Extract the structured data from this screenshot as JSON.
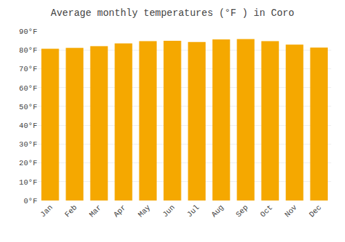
{
  "chart_data": {
    "type": "bar",
    "title": "Average monthly temperatures (°F ) in Coro",
    "categories": [
      "Jan",
      "Feb",
      "Mar",
      "Apr",
      "May",
      "Jun",
      "Jul",
      "Aug",
      "Sep",
      "Oct",
      "Nov",
      "Dec"
    ],
    "values": [
      80.6,
      81.1,
      82.0,
      83.5,
      84.7,
      84.9,
      84.2,
      85.6,
      85.8,
      84.7,
      82.8,
      81.3
    ],
    "color": "#F5A800",
    "ylim": [
      0,
      90
    ],
    "yticks": [
      {
        "value": 0,
        "label": "0°F"
      },
      {
        "value": 10,
        "label": "10°F"
      },
      {
        "value": 20,
        "label": "20°F"
      },
      {
        "value": 30,
        "label": "30°F"
      },
      {
        "value": 40,
        "label": "40°F"
      },
      {
        "value": 50,
        "label": "50°F"
      },
      {
        "value": 60,
        "label": "60°F"
      },
      {
        "value": 70,
        "label": "70°F"
      },
      {
        "value": 80,
        "label": "80°F"
      },
      {
        "value": 90,
        "label": "90°F"
      }
    ],
    "grid": true
  }
}
